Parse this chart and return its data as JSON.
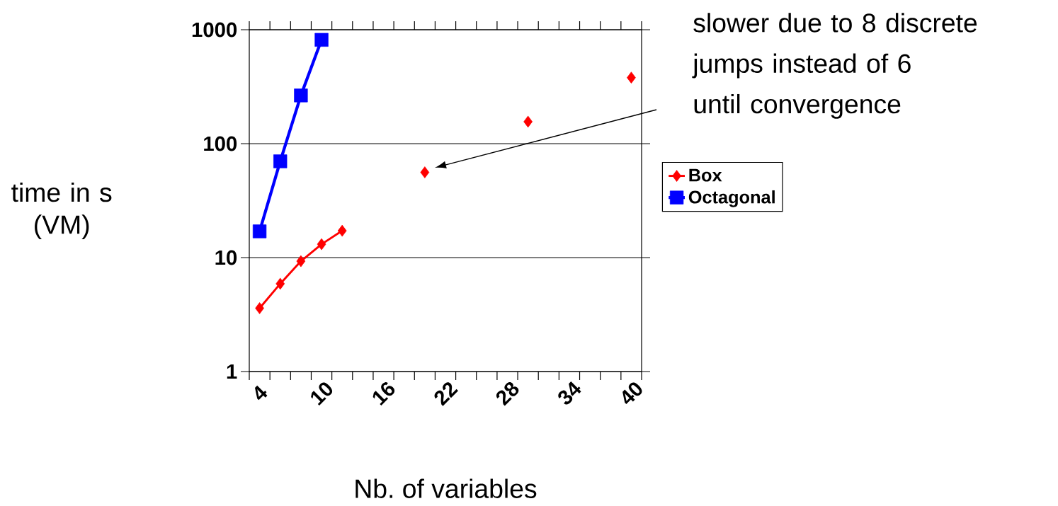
{
  "chart_data": {
    "type": "line",
    "xlabel": "Nb. of variables",
    "ylabel": "time in s\n(VM)",
    "categories": [
      "4",
      null,
      null,
      "10",
      null,
      null,
      "16",
      null,
      null,
      "22",
      null,
      null,
      "28",
      null,
      null,
      "34",
      null,
      null,
      "40"
    ],
    "series": [
      {
        "name": "Box",
        "color": "#ff0000",
        "marker": "diamond",
        "values": [
          3.6,
          5.9,
          9.3,
          13.1,
          17.2,
          null,
          null,
          null,
          56,
          null,
          null,
          null,
          null,
          156,
          null,
          null,
          null,
          null,
          380
        ]
      },
      {
        "name": "Octagonal",
        "color": "#0000ff",
        "marker": "square",
        "values": [
          17,
          70,
          265,
          815,
          null,
          null,
          null,
          null,
          null,
          null,
          null,
          null,
          null,
          null,
          null,
          null,
          null,
          null,
          null
        ]
      }
    ],
    "log": "y",
    "ylim": [
      1,
      1000
    ],
    "yticks": [
      1,
      10,
      100,
      1000
    ],
    "grid": "y",
    "legend": "right",
    "annotations": [
      "slower due to 8 discrete\njumps instead of 6\nuntil convergence"
    ]
  }
}
